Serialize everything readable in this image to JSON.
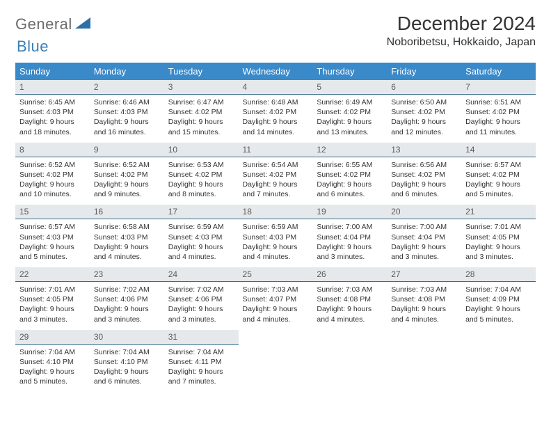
{
  "logo": {
    "text1": "General",
    "text2": "Blue"
  },
  "title": "December 2024",
  "location": "Noboribetsu, Hokkaido, Japan",
  "colors": {
    "header_bg": "#3a89c9",
    "header_text": "#ffffff",
    "daynum_bg": "#e6e9ec",
    "daynum_border": "#3a6a8a",
    "body_text": "#333333",
    "logo_gray": "#6b6b6b",
    "logo_blue": "#3a7fb8"
  },
  "weekdays": [
    "Sunday",
    "Monday",
    "Tuesday",
    "Wednesday",
    "Thursday",
    "Friday",
    "Saturday"
  ],
  "days": [
    {
      "n": "1",
      "sr": "6:45 AM",
      "ss": "4:03 PM",
      "dl": "9 hours and 18 minutes."
    },
    {
      "n": "2",
      "sr": "6:46 AM",
      "ss": "4:03 PM",
      "dl": "9 hours and 16 minutes."
    },
    {
      "n": "3",
      "sr": "6:47 AM",
      "ss": "4:02 PM",
      "dl": "9 hours and 15 minutes."
    },
    {
      "n": "4",
      "sr": "6:48 AM",
      "ss": "4:02 PM",
      "dl": "9 hours and 14 minutes."
    },
    {
      "n": "5",
      "sr": "6:49 AM",
      "ss": "4:02 PM",
      "dl": "9 hours and 13 minutes."
    },
    {
      "n": "6",
      "sr": "6:50 AM",
      "ss": "4:02 PM",
      "dl": "9 hours and 12 minutes."
    },
    {
      "n": "7",
      "sr": "6:51 AM",
      "ss": "4:02 PM",
      "dl": "9 hours and 11 minutes."
    },
    {
      "n": "8",
      "sr": "6:52 AM",
      "ss": "4:02 PM",
      "dl": "9 hours and 10 minutes."
    },
    {
      "n": "9",
      "sr": "6:52 AM",
      "ss": "4:02 PM",
      "dl": "9 hours and 9 minutes."
    },
    {
      "n": "10",
      "sr": "6:53 AM",
      "ss": "4:02 PM",
      "dl": "9 hours and 8 minutes."
    },
    {
      "n": "11",
      "sr": "6:54 AM",
      "ss": "4:02 PM",
      "dl": "9 hours and 7 minutes."
    },
    {
      "n": "12",
      "sr": "6:55 AM",
      "ss": "4:02 PM",
      "dl": "9 hours and 6 minutes."
    },
    {
      "n": "13",
      "sr": "6:56 AM",
      "ss": "4:02 PM",
      "dl": "9 hours and 6 minutes."
    },
    {
      "n": "14",
      "sr": "6:57 AM",
      "ss": "4:02 PM",
      "dl": "9 hours and 5 minutes."
    },
    {
      "n": "15",
      "sr": "6:57 AM",
      "ss": "4:03 PM",
      "dl": "9 hours and 5 minutes."
    },
    {
      "n": "16",
      "sr": "6:58 AM",
      "ss": "4:03 PM",
      "dl": "9 hours and 4 minutes."
    },
    {
      "n": "17",
      "sr": "6:59 AM",
      "ss": "4:03 PM",
      "dl": "9 hours and 4 minutes."
    },
    {
      "n": "18",
      "sr": "6:59 AM",
      "ss": "4:03 PM",
      "dl": "9 hours and 4 minutes."
    },
    {
      "n": "19",
      "sr": "7:00 AM",
      "ss": "4:04 PM",
      "dl": "9 hours and 3 minutes."
    },
    {
      "n": "20",
      "sr": "7:00 AM",
      "ss": "4:04 PM",
      "dl": "9 hours and 3 minutes."
    },
    {
      "n": "21",
      "sr": "7:01 AM",
      "ss": "4:05 PM",
      "dl": "9 hours and 3 minutes."
    },
    {
      "n": "22",
      "sr": "7:01 AM",
      "ss": "4:05 PM",
      "dl": "9 hours and 3 minutes."
    },
    {
      "n": "23",
      "sr": "7:02 AM",
      "ss": "4:06 PM",
      "dl": "9 hours and 3 minutes."
    },
    {
      "n": "24",
      "sr": "7:02 AM",
      "ss": "4:06 PM",
      "dl": "9 hours and 3 minutes."
    },
    {
      "n": "25",
      "sr": "7:03 AM",
      "ss": "4:07 PM",
      "dl": "9 hours and 4 minutes."
    },
    {
      "n": "26",
      "sr": "7:03 AM",
      "ss": "4:08 PM",
      "dl": "9 hours and 4 minutes."
    },
    {
      "n": "27",
      "sr": "7:03 AM",
      "ss": "4:08 PM",
      "dl": "9 hours and 4 minutes."
    },
    {
      "n": "28",
      "sr": "7:04 AM",
      "ss": "4:09 PM",
      "dl": "9 hours and 5 minutes."
    },
    {
      "n": "29",
      "sr": "7:04 AM",
      "ss": "4:10 PM",
      "dl": "9 hours and 5 minutes."
    },
    {
      "n": "30",
      "sr": "7:04 AM",
      "ss": "4:10 PM",
      "dl": "9 hours and 6 minutes."
    },
    {
      "n": "31",
      "sr": "7:04 AM",
      "ss": "4:11 PM",
      "dl": "9 hours and 7 minutes."
    }
  ],
  "labels": {
    "sunrise": "Sunrise:",
    "sunset": "Sunset:",
    "daylight": "Daylight:"
  }
}
